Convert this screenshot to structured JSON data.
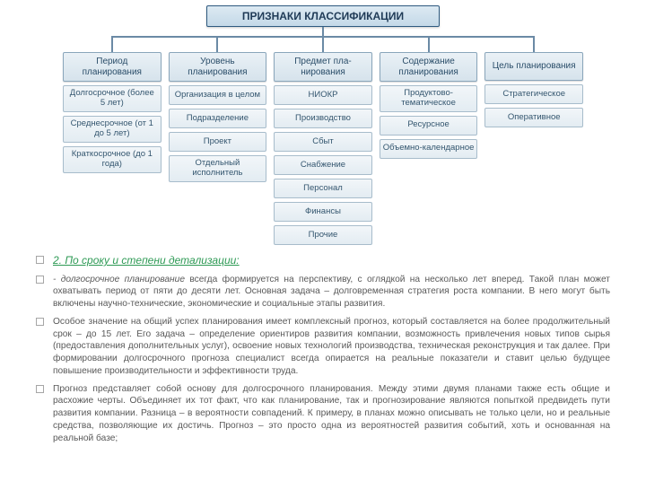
{
  "diagram": {
    "root": "ПРИЗНАКИ КЛАССИФИКАЦИИ",
    "colors": {
      "root_bg_top": "#dce9f2",
      "root_bg_bottom": "#c4d9e8",
      "root_border": "#2f5b80",
      "box_bg_top": "#eaf1f6",
      "box_bg_bottom": "#d6e3ec",
      "box_border": "#8aa6bb",
      "item_bg_top": "#f2f6f9",
      "item_bg_bottom": "#e3ecf2",
      "item_border": "#a7bccb",
      "connector": "#6b8aa5"
    },
    "columns": [
      {
        "title": "Период планирования",
        "items": [
          "Долгосрочное (более 5 лет)",
          "Среднесрочное (от 1 до 5 лет)",
          "Краткосрочное (до 1 года)"
        ]
      },
      {
        "title": "Уровень планирования",
        "items": [
          "Организация в целом",
          "Подразделение",
          "Проект",
          "Отдельный исполнитель"
        ]
      },
      {
        "title": "Предмет пла­нирования",
        "items": [
          "НИОКР",
          "Производство",
          "Сбыт",
          "Снабжение",
          "Персонал",
          "Финансы",
          "Прочие"
        ]
      },
      {
        "title": "Содержание планирования",
        "items": [
          "Продуктово-тематическое",
          "Ресурсное",
          "Объемно-календарное"
        ]
      },
      {
        "title": "Цель планирования",
        "items": [
          "Стратегическое",
          "Оперативное"
        ]
      }
    ]
  },
  "text": {
    "heading": "2. По сроку и степени детализации:",
    "para1_prefix": "- долгосрочное планирование",
    "para1": " всегда формируется на перспективу, с оглядкой на несколько лет вперед. Такой план может охватывать период от пяти до десяти лет. Основная задача  – долговременная стратегия роста компании. В него могут быть включены научно-технические, экономические и социальные этапы развития.",
    "para2": "Особое значение на общий успех планирования имеет комплексный прогноз, который составляется на более продолжительный срок – до 15 лет. Его задача – определение ориентиров развития компании, возможность привлечения новых типов сырья (предоставления дополнительных услуг), освоение новых технологий производства, техническая реконструкция и так далее. При формировании долгосрочного прогноза специалист всегда опирается на реальные показатели и ставит целью будущее повышение производительности и эффективности труда.",
    "para3": "Прогноз представляет собой основу для долгосрочного планирования. Между этими двумя планами также есть общие и расхожие черты. Объединяет их тот факт, что как планирование, так и прогнозирование являются попыткой предвидеть пути развития компании. Разница – в вероятности совпадений. К примеру, в планах можно описывать не только цели, но и реальные средства, позволяющие их достичь. Прогноз – это просто одна из вероятностей развития событий, хоть и основанная на реальной базе;"
  }
}
